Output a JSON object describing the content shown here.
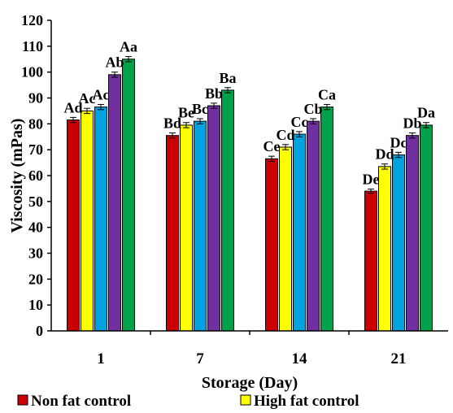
{
  "chart_data": {
    "type": "bar",
    "xlabel": "Storage (Day)",
    "ylabel": "Viscosity (mPas)",
    "ylim": [
      0,
      120
    ],
    "yticks": [
      0,
      10,
      20,
      30,
      40,
      50,
      60,
      70,
      80,
      90,
      100,
      110,
      120
    ],
    "categories": [
      "1",
      "7",
      "14",
      "21"
    ],
    "grid": false,
    "legend_position": "bottom",
    "error_bars": true,
    "series": [
      {
        "name": "Non fat control",
        "color": "#cc0000",
        "values": [
          81.5,
          75.5,
          66.5,
          54
        ],
        "errors": [
          1,
          1,
          1,
          0.8
        ],
        "labels": [
          "Ad",
          "Bd",
          "Ce",
          "De"
        ]
      },
      {
        "name": "High fat control",
        "color": "#ffff00",
        "values": [
          85,
          79.5,
          71,
          63.5
        ],
        "errors": [
          1,
          1,
          1,
          1
        ],
        "labels": [
          "Ac",
          "Be",
          "Cd",
          "Dd"
        ]
      },
      {
        "name": "",
        "color": "#00a3e0",
        "values": [
          86.5,
          81,
          76,
          68
        ],
        "errors": [
          1,
          1,
          1,
          1
        ],
        "labels": [
          "Ac",
          "Bc",
          "Cc",
          "Dc"
        ]
      },
      {
        "name": "",
        "color": "#7030a0",
        "values": [
          99,
          87,
          81,
          75.5
        ],
        "errors": [
          1,
          1,
          1,
          1
        ],
        "labels": [
          "Ab",
          "Bb",
          "Cb",
          "Db"
        ]
      },
      {
        "name": "",
        "color": "#00a14b",
        "values": [
          105,
          93,
          86.5,
          79.5
        ],
        "errors": [
          1,
          1,
          1,
          1
        ],
        "labels": [
          "Aa",
          "Ba",
          "Ca",
          "Da"
        ]
      }
    ]
  }
}
